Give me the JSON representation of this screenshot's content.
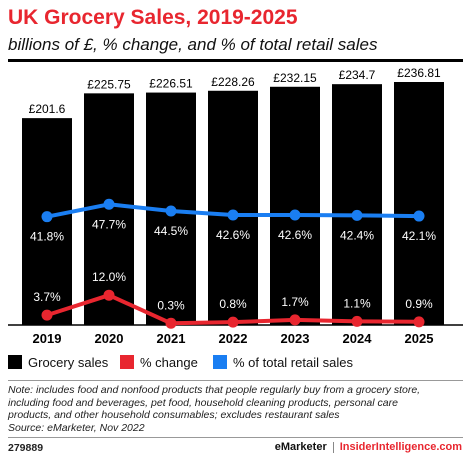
{
  "title": "UK Grocery Sales, 2019-2025",
  "subtitle": "billions of £, % change, and % of total retail sales",
  "chart_data": {
    "type": "bar",
    "categories": [
      "2019",
      "2020",
      "2021",
      "2022",
      "2023",
      "2024",
      "2025"
    ],
    "series": [
      {
        "name": "Grocery sales",
        "type": "bar",
        "color": "#000000",
        "values": [
          201.6,
          225.75,
          226.51,
          228.26,
          232.15,
          234.7,
          236.81
        ],
        "labels": [
          "£201.6",
          "£225.75",
          "£226.51",
          "£228.26",
          "£232.15",
          "£234.7",
          "£236.81"
        ]
      },
      {
        "name": "% change",
        "type": "line",
        "color": "#e8262f",
        "values": [
          3.7,
          12.0,
          0.3,
          0.8,
          1.7,
          1.1,
          0.9
        ],
        "labels": [
          "3.7%",
          "12.0%",
          "0.3%",
          "0.8%",
          "1.7%",
          "1.1%",
          "0.9%"
        ]
      },
      {
        "name": "% of total retail sales",
        "type": "line",
        "color": "#1a7ef2",
        "values": [
          41.8,
          47.7,
          44.5,
          42.6,
          42.6,
          42.4,
          42.1
        ],
        "labels": [
          "41.8%",
          "47.7%",
          "44.5%",
          "42.6%",
          "42.6%",
          "42.4%",
          "42.1%"
        ]
      }
    ],
    "xlabel": "",
    "ylabel": "",
    "grid": false,
    "legend_position": "bottom"
  },
  "legend": {
    "items": [
      {
        "label": "Grocery sales",
        "color": "#000000"
      },
      {
        "label": "% change",
        "color": "#e8262f"
      },
      {
        "label": "% of total retail sales",
        "color": "#1a7ef2"
      }
    ]
  },
  "note": {
    "lines": [
      "Note: includes food and nonfood products that people regularly buy from a grocery store,",
      "including food and beverages, pet food, household cleaning products, personal care",
      "products, and other household consumables; excludes restaurant sales",
      "Source: eMarketer, Nov 2022"
    ]
  },
  "footer": {
    "chart_id": "279889",
    "brand_left": "eMarketer",
    "brand_right": "InsiderIntelligence.com"
  }
}
